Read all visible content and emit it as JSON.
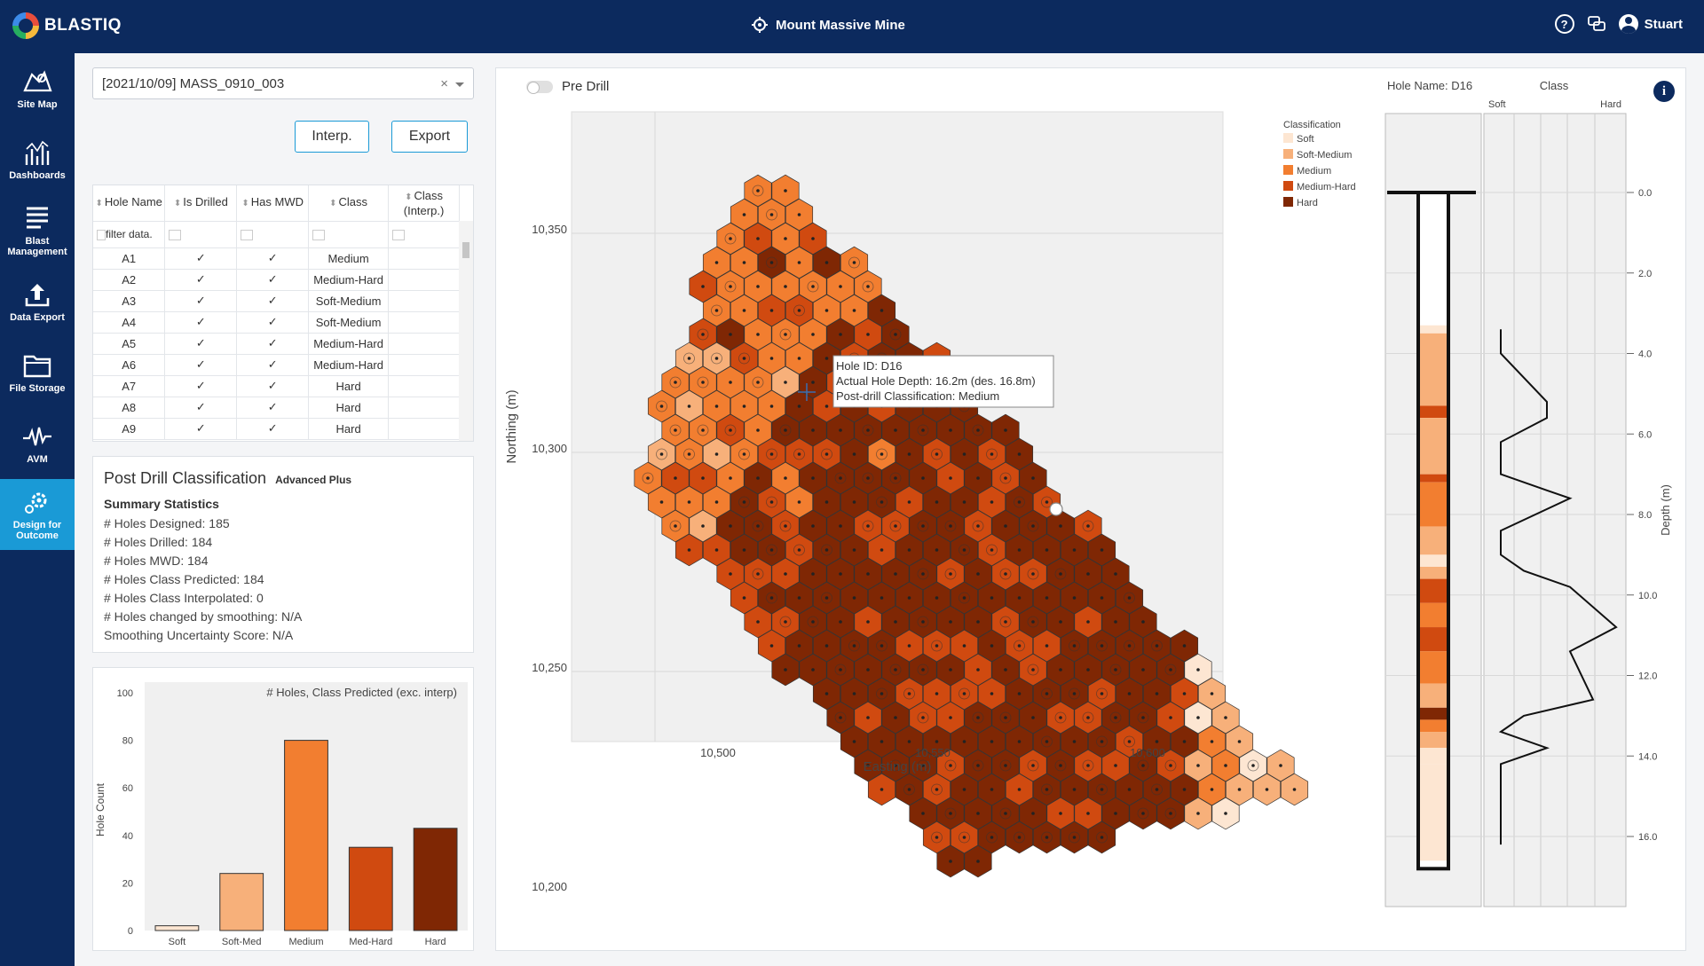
{
  "app": {
    "brand": "BLASTIQ",
    "site": "Mount Massive Mine",
    "user": "Stuart"
  },
  "nav": [
    {
      "label": "Site Map",
      "icon": "site-map-icon"
    },
    {
      "label": "Dashboards",
      "icon": "dashboards-icon"
    },
    {
      "label": "Blast Management",
      "icon": "blast-management-icon"
    },
    {
      "label": "Data Export",
      "icon": "data-export-icon"
    },
    {
      "label": "File Storage",
      "icon": "file-storage-icon"
    },
    {
      "label": "AVM",
      "icon": "avm-icon"
    },
    {
      "label": "Design for Outcome",
      "icon": "design-outcome-icon",
      "active": true
    }
  ],
  "blast_select": {
    "value": "[2021/10/09] MASS_0910_003",
    "clear": "×"
  },
  "buttons": {
    "interp": "Interp.",
    "export": "Export"
  },
  "table": {
    "headers": [
      "Hole Name",
      "Is Drilled",
      "Has MWD",
      "Class",
      "Class (Interp.)"
    ],
    "filter_placeholder": "filter data.",
    "rows": [
      [
        "A1",
        "✓",
        "✓",
        "Medium",
        ""
      ],
      [
        "A2",
        "✓",
        "✓",
        "Medium-Hard",
        ""
      ],
      [
        "A3",
        "✓",
        "✓",
        "Soft-Medium",
        ""
      ],
      [
        "A4",
        "✓",
        "✓",
        "Soft-Medium",
        ""
      ],
      [
        "A5",
        "✓",
        "✓",
        "Medium-Hard",
        ""
      ],
      [
        "A6",
        "✓",
        "✓",
        "Medium-Hard",
        ""
      ],
      [
        "A7",
        "✓",
        "✓",
        "Hard",
        ""
      ],
      [
        "A8",
        "✓",
        "✓",
        "Hard",
        ""
      ],
      [
        "A9",
        "✓",
        "✓",
        "Hard",
        ""
      ]
    ]
  },
  "summary": {
    "title": "Post Drill Classification",
    "badge": "Advanced Plus",
    "subtitle": "Summary Statistics",
    "lines": [
      "# Holes Designed: 185",
      "# Holes Drilled: 184",
      "# Holes MWD: 184",
      "# Holes Class Predicted: 184",
      "# Holes Class Interpolated: 0",
      "# Holes changed by smoothing: N/A",
      "Smoothing Uncertainty Score: N/A"
    ]
  },
  "histogram": {
    "title": "# Holes, Class Predicted (exc. interp)",
    "ylabel": "Hole Count",
    "yticks": [
      "0",
      "20",
      "40",
      "60",
      "80",
      "100"
    ]
  },
  "colors": {
    "soft": "#fde6d2",
    "soft_medium": "#f7b07a",
    "medium": "#f27e30",
    "medium_hard": "#d04a10",
    "hard": "#7f2704",
    "nav_bg": "#0c2a5e",
    "accent": "#1a9ad6"
  },
  "main": {
    "toggle_label": "Pre Drill",
    "hole_name": "Hole Name: D16",
    "class_label": "Class",
    "soft_label": "Soft",
    "hard_label": "Hard"
  },
  "map": {
    "xlabel": "Easting (m)",
    "ylabel": "Northing (m)",
    "xticks": [
      "10,500",
      "10,550",
      "10,600"
    ],
    "yticks": [
      "10,350",
      "10,300",
      "10,250",
      "10,200"
    ],
    "legend_title": "Classification",
    "legend": [
      "Soft",
      "Soft-Medium",
      "Medium",
      "Medium-Hard",
      "Hard"
    ],
    "tooltip": [
      "Hole ID: D16",
      "Actual Hole Depth: 16.2m (des. 16.8m)",
      "Post-drill Classification: Medium"
    ]
  },
  "depth": {
    "ylabel": "Depth (m)",
    "ticks": [
      "0.0",
      "2.0",
      "4.0",
      "6.0",
      "8.0",
      "10.0",
      "12.0",
      "14.0",
      "16.0"
    ]
  },
  "chart_data": [
    {
      "type": "bar",
      "title": "# Holes, Class Predicted (exc. interp)",
      "ylabel": "Hole Count",
      "categories": [
        "Soft",
        "Soft-Med",
        "Medium",
        "Med-Hard",
        "Hard"
      ],
      "values": [
        2,
        24,
        80,
        35,
        43
      ],
      "ylim": [
        0,
        100
      ]
    },
    {
      "type": "line",
      "title": "Class",
      "ylabel": "Depth (m)",
      "ylim": [
        0,
        16.8
      ],
      "x": [
        0.3,
        0.3,
        0.5,
        0.5,
        0.3,
        0.3,
        0.5,
        0.6,
        0.3,
        0.3,
        0.4,
        0.6,
        0.8,
        0.6,
        0.7,
        0.4,
        0.3,
        0.5,
        0.3,
        0.3,
        0.3
      ],
      "y": [
        3.4,
        4.0,
        5.2,
        5.6,
        6.2,
        7.0,
        7.4,
        7.6,
        8.4,
        9.0,
        9.4,
        9.8,
        10.8,
        11.4,
        12.6,
        13.0,
        13.4,
        13.8,
        14.2,
        15.0,
        16.2
      ]
    }
  ]
}
